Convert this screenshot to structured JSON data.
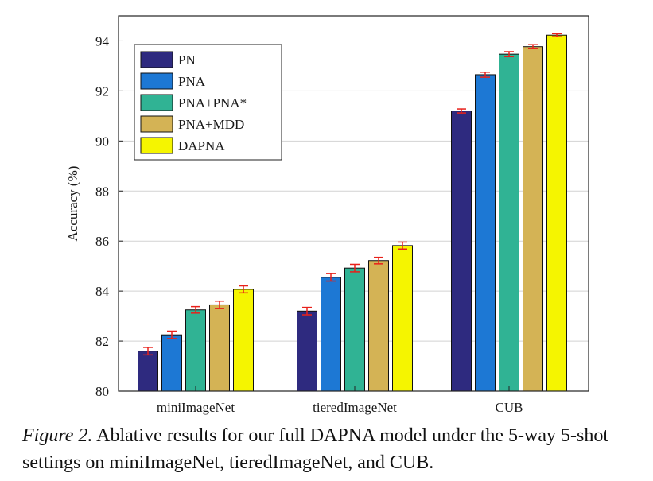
{
  "chart_data": {
    "type": "bar",
    "categories": [
      "miniImageNet",
      "tieredImageNet",
      "CUB"
    ],
    "series": [
      {
        "name": "PN",
        "color": "#2e2a7f",
        "values": [
          81.6,
          83.2,
          91.2
        ],
        "errors": [
          0.15,
          0.15,
          0.08
        ]
      },
      {
        "name": "PNA",
        "color": "#1d78d4",
        "values": [
          82.25,
          84.55,
          92.65
        ],
        "errors": [
          0.15,
          0.15,
          0.1
        ]
      },
      {
        "name": "PNA+PNA*",
        "color": "#30b394",
        "values": [
          83.25,
          84.92,
          93.47
        ],
        "errors": [
          0.13,
          0.15,
          0.1
        ]
      },
      {
        "name": "PNA+MDD",
        "color": "#d4b355",
        "values": [
          83.45,
          85.22,
          93.77
        ],
        "errors": [
          0.15,
          0.13,
          0.08
        ]
      },
      {
        "name": "DAPNA",
        "color": "#f5f500",
        "values": [
          84.07,
          85.82,
          94.23
        ],
        "errors": [
          0.14,
          0.14,
          0.06
        ]
      }
    ],
    "error_bar_color": "#e8201a",
    "ylabel": "Accuracy (%)",
    "xlabel": "",
    "ylim": [
      80,
      95
    ],
    "yticks": [
      80,
      82,
      84,
      86,
      88,
      90,
      92,
      94
    ],
    "grid": true,
    "legend_position": "top-left"
  },
  "caption": {
    "label": "Figure 2.",
    "text": " Ablative results for our full DAPNA model under the 5-way 5-shot settings on miniImageNet, tieredImageNet, and CUB."
  }
}
